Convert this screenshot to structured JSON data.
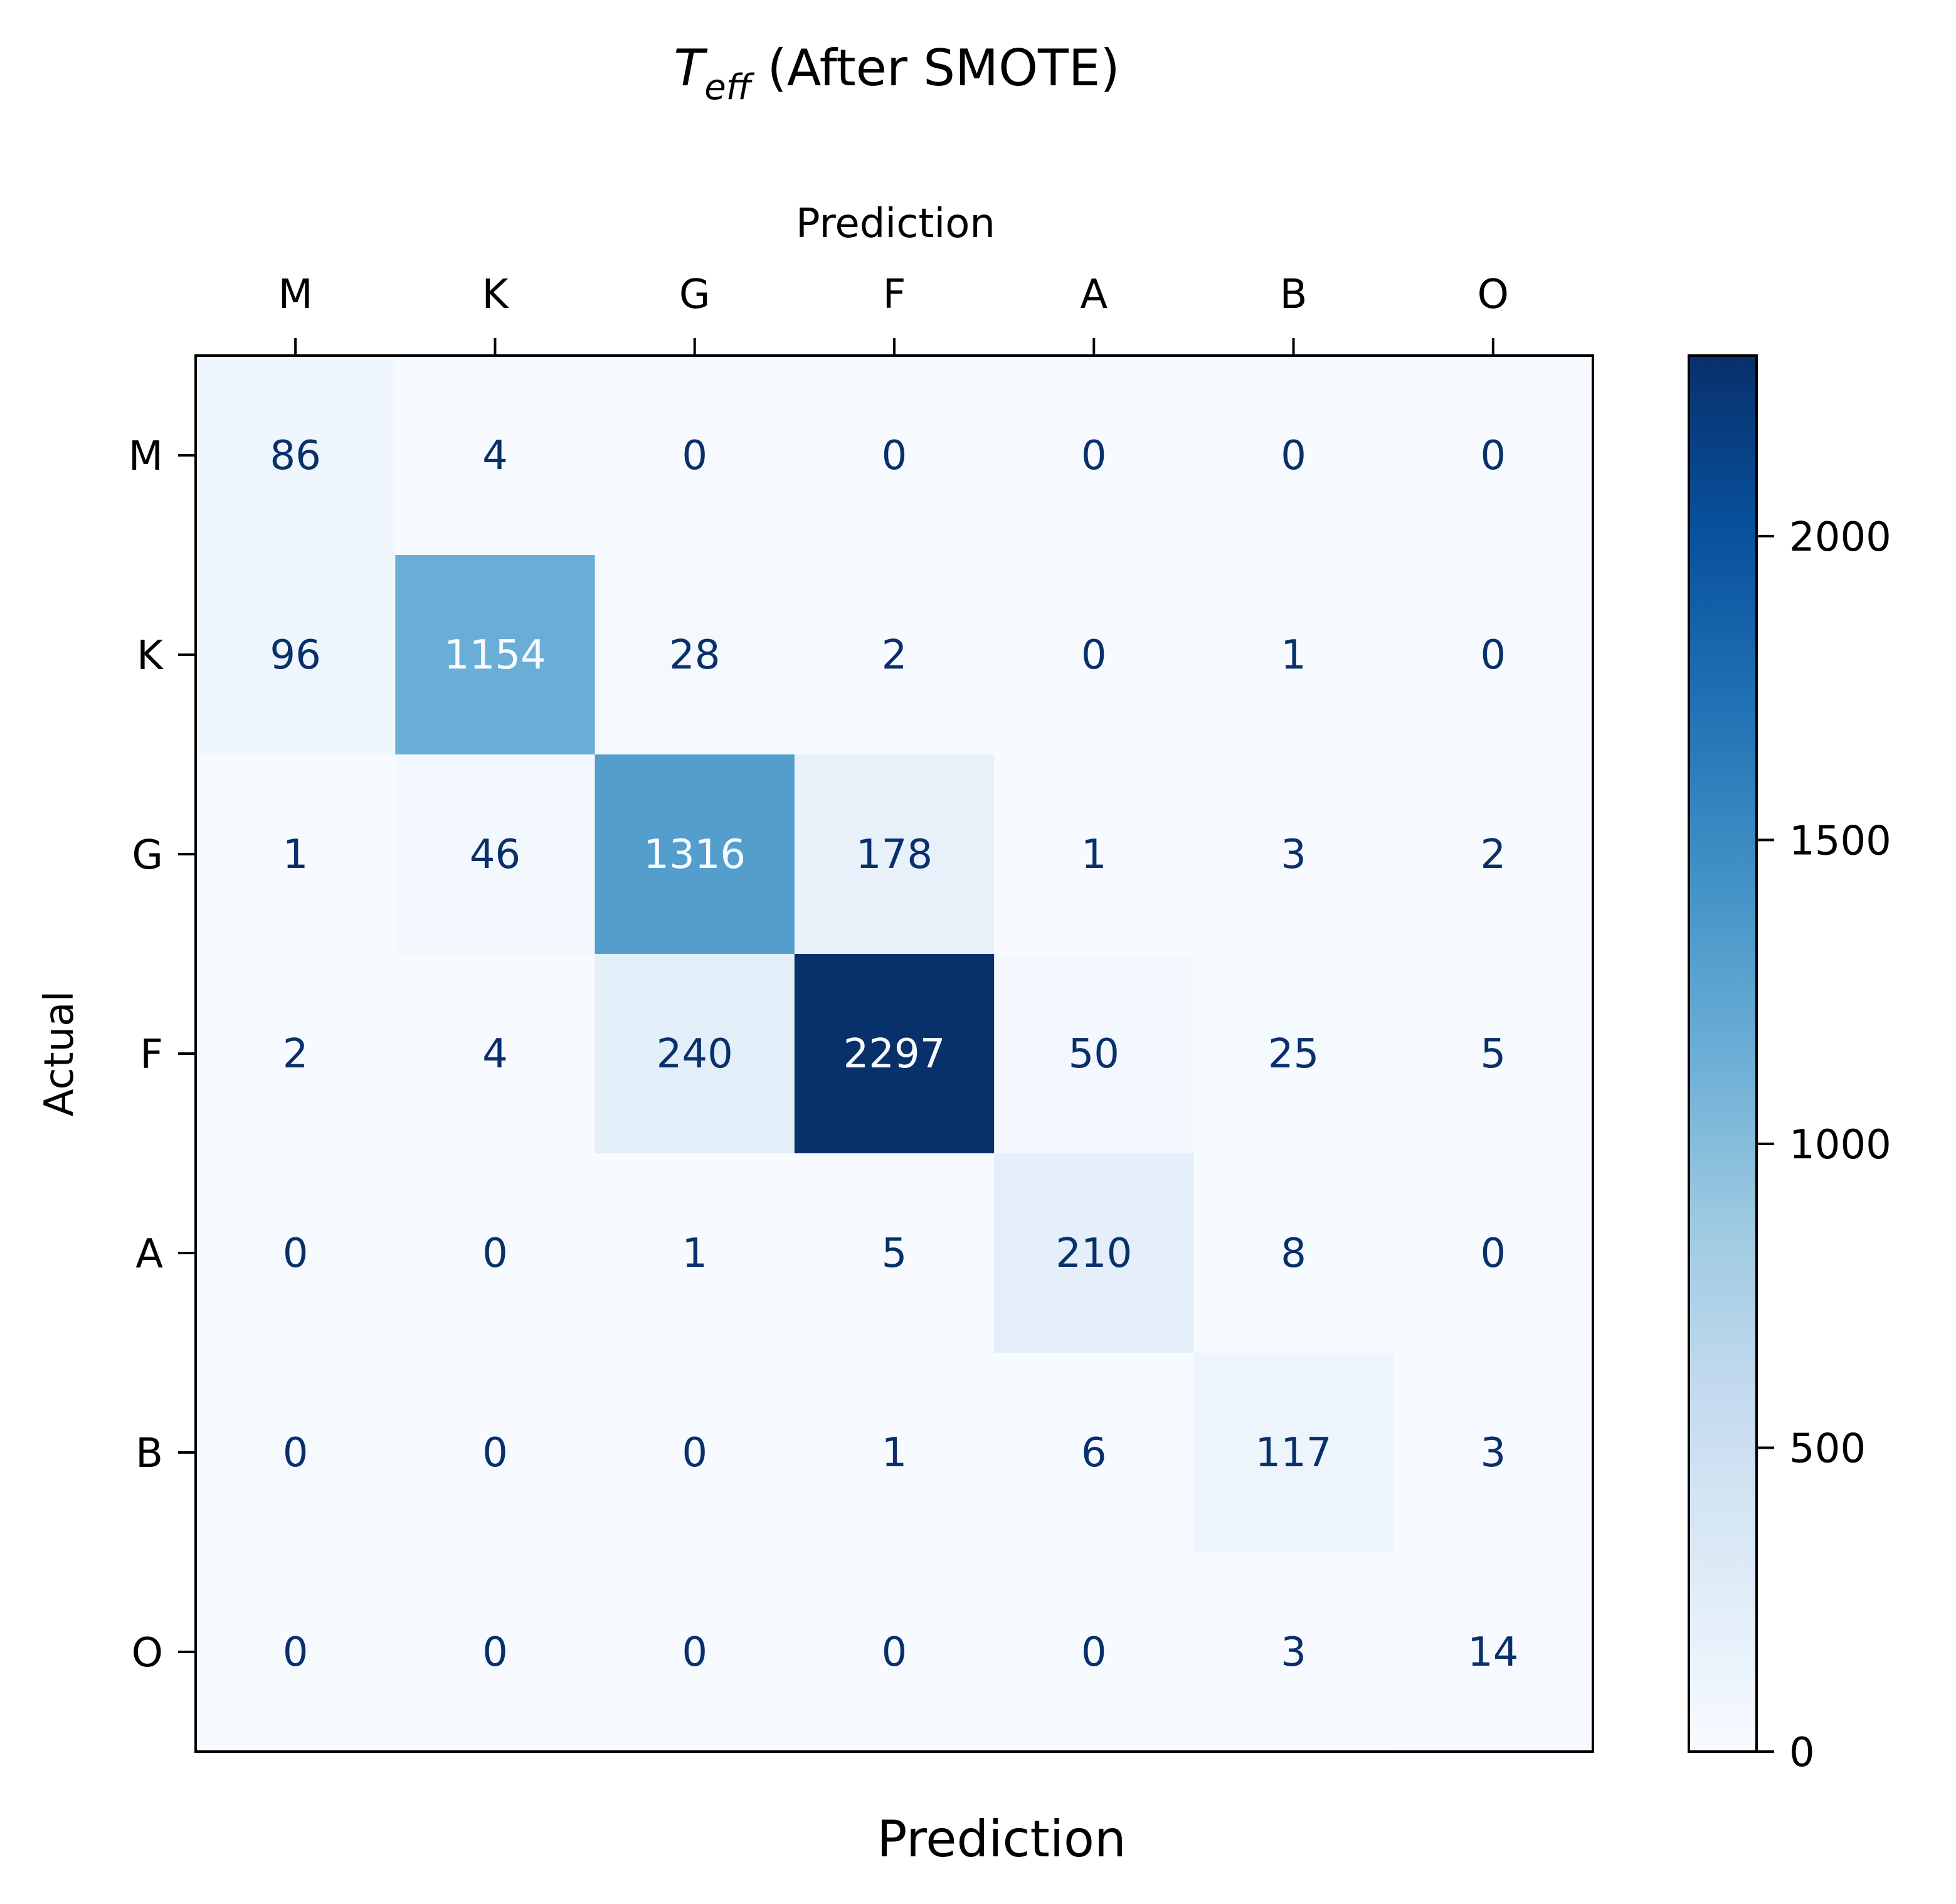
{
  "chart_data": {
    "type": "heatmap",
    "title_main": "T",
    "title_sub": "eff",
    "title_rest": " (After SMOTE)",
    "top_xlabel": "Prediction",
    "xlabel": "Prediction",
    "ylabel": "Actual",
    "x_categories": [
      "M",
      "K",
      "G",
      "F",
      "A",
      "B",
      "O"
    ],
    "y_categories": [
      "M",
      "K",
      "G",
      "F",
      "A",
      "B",
      "O"
    ],
    "values": [
      [
        86,
        4,
        0,
        0,
        0,
        0,
        0
      ],
      [
        96,
        1154,
        28,
        2,
        0,
        1,
        0
      ],
      [
        1,
        46,
        1316,
        178,
        1,
        3,
        2
      ],
      [
        2,
        4,
        240,
        2297,
        50,
        25,
        5
      ],
      [
        0,
        0,
        1,
        5,
        210,
        8,
        0
      ],
      [
        0,
        0,
        0,
        1,
        6,
        117,
        3
      ],
      [
        0,
        0,
        0,
        0,
        0,
        3,
        14
      ]
    ],
    "colormap": "Blues",
    "colorbar": {
      "range": [
        0,
        2297
      ],
      "ticks": [
        0,
        500,
        1000,
        1500,
        2000
      ]
    },
    "grid": false
  },
  "colors": {
    "text_dark": "#08306b",
    "text_light": "#f7fbff",
    "axis": "#000000"
  }
}
